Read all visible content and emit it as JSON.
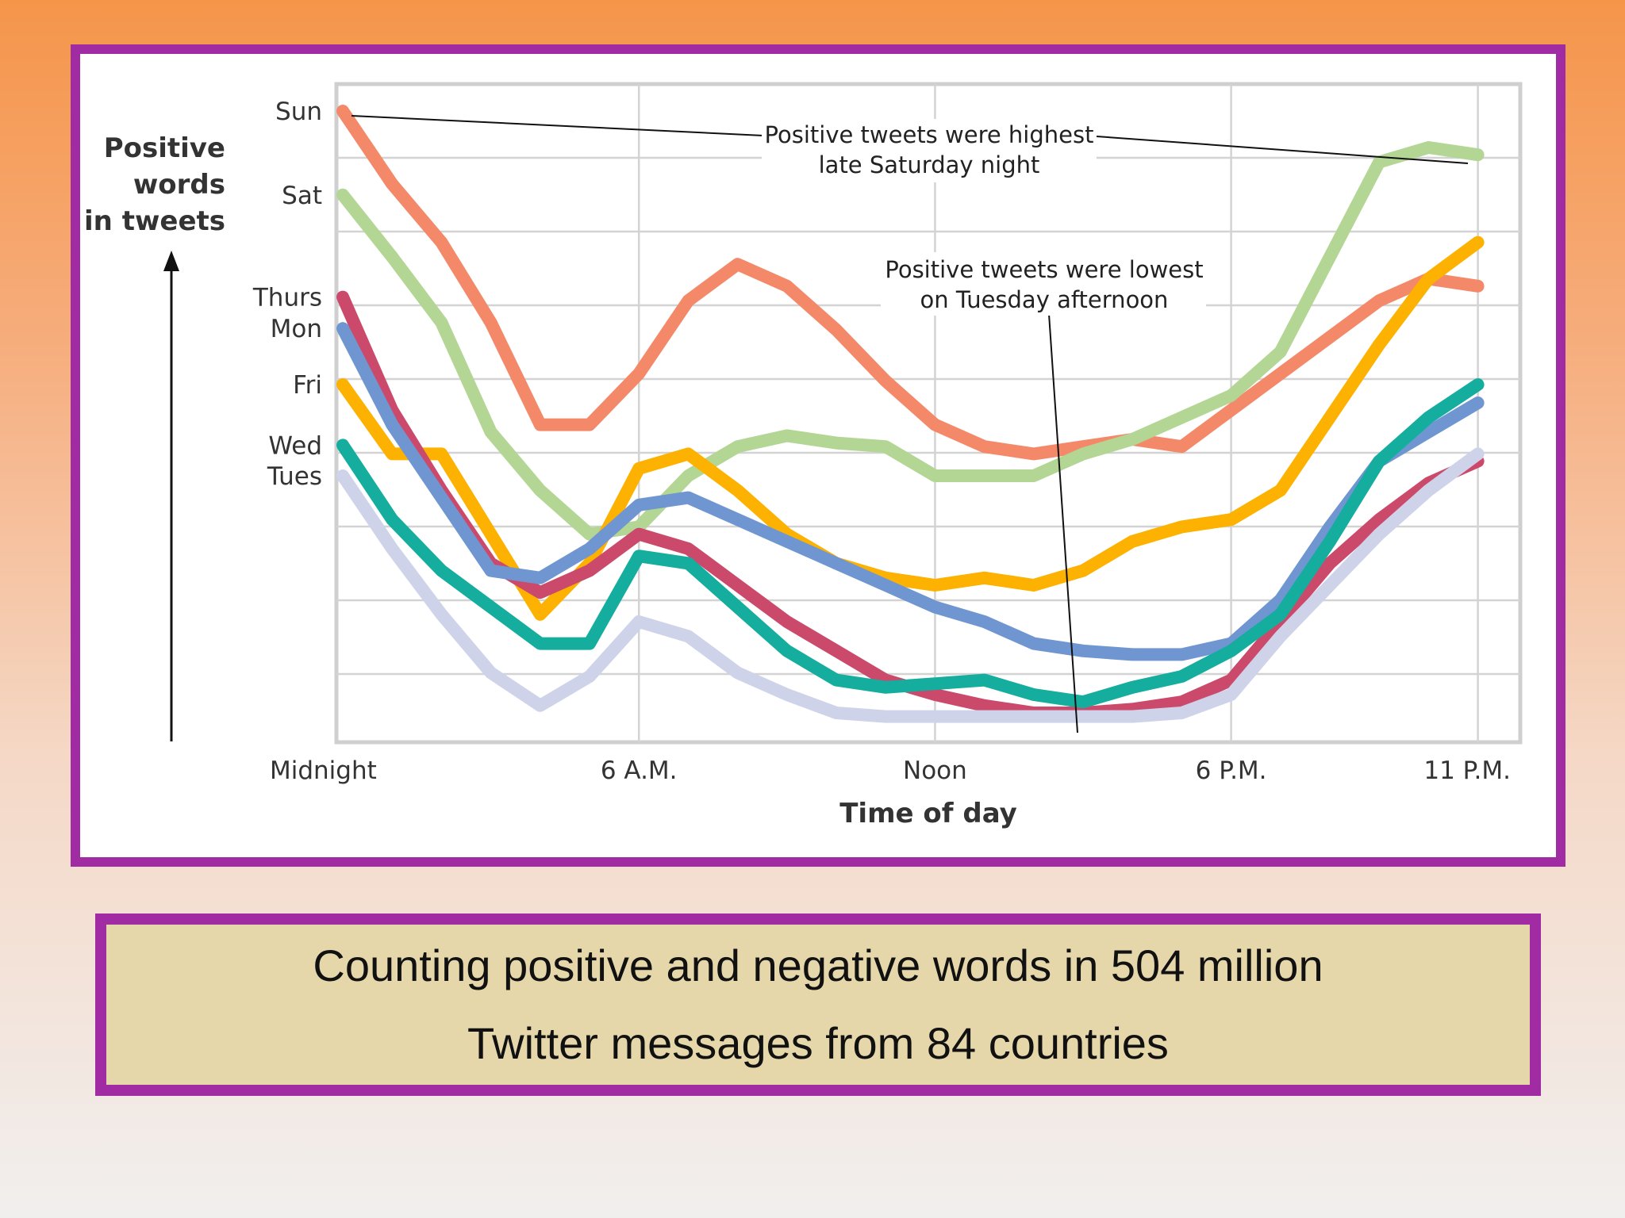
{
  "chart_data": {
    "type": "line",
    "title": "",
    "xlabel": "Time of day",
    "ylabel": "Positive words in tweets",
    "ylabel_lines": [
      "Positive",
      "words",
      "in tweets"
    ],
    "x_ticks": [
      {
        "hour": 0,
        "label": "Midnight"
      },
      {
        "hour": 6,
        "label": "6 A.M."
      },
      {
        "hour": 12,
        "label": "Noon"
      },
      {
        "hour": 18,
        "label": "6 P.M."
      },
      {
        "hour": 23,
        "label": "11 P.M."
      }
    ],
    "x_range": [
      0,
      23
    ],
    "y_range": [
      0,
      9
    ],
    "grid": true,
    "legend": "none",
    "day_labels": [
      {
        "label": "Sun",
        "y": 8.5
      },
      {
        "label": "Sat",
        "y": 7.35
      },
      {
        "label": "Thurs",
        "y": 5.95
      },
      {
        "label": "Mon",
        "y": 5.52
      },
      {
        "label": "Fri",
        "y": 4.75
      },
      {
        "label": "Wed",
        "y": 3.92
      },
      {
        "label": "Tues",
        "y": 3.5
      }
    ],
    "series": [
      {
        "color": "#f4896a",
        "values": [
          [
            0,
            8.5
          ],
          [
            1,
            7.5
          ],
          [
            2,
            6.7
          ],
          [
            3,
            5.6
          ],
          [
            4,
            4.2
          ],
          [
            5,
            4.2
          ],
          [
            6,
            4.9
          ],
          [
            7,
            5.9
          ],
          [
            8,
            6.4
          ],
          [
            9,
            6.1
          ],
          [
            10,
            5.5
          ],
          [
            11,
            4.8
          ],
          [
            12,
            4.2
          ],
          [
            13,
            3.9
          ],
          [
            14,
            3.8
          ],
          [
            15,
            3.9
          ],
          [
            16,
            4.0
          ],
          [
            17,
            3.9
          ],
          [
            18,
            4.4
          ],
          [
            19,
            4.9
          ],
          [
            20,
            5.4
          ],
          [
            21,
            5.9
          ],
          [
            22,
            6.2
          ],
          [
            23,
            6.1
          ]
        ]
      },
      {
        "color": "#b3d694",
        "values": [
          [
            0,
            7.35
          ],
          [
            1,
            6.5
          ],
          [
            2,
            5.6
          ],
          [
            3,
            4.1
          ],
          [
            4,
            3.3
          ],
          [
            5,
            2.7
          ],
          [
            6,
            2.8
          ],
          [
            7,
            3.5
          ],
          [
            8,
            3.9
          ],
          [
            9,
            4.05
          ],
          [
            10,
            3.95
          ],
          [
            11,
            3.9
          ],
          [
            12,
            3.5
          ],
          [
            13,
            3.5
          ],
          [
            14,
            3.5
          ],
          [
            15,
            3.8
          ],
          [
            16,
            4.0
          ],
          [
            17,
            4.3
          ],
          [
            18,
            4.6
          ],
          [
            19,
            5.2
          ],
          [
            20,
            6.5
          ],
          [
            21,
            7.8
          ],
          [
            22,
            8.0
          ],
          [
            23,
            7.9
          ]
        ]
      },
      {
        "color": "#fdb100",
        "values": [
          [
            0,
            4.75
          ],
          [
            1,
            3.8
          ],
          [
            2,
            3.8
          ],
          [
            3,
            2.7
          ],
          [
            4,
            1.6
          ],
          [
            5,
            2.3
          ],
          [
            6,
            3.6
          ],
          [
            7,
            3.8
          ],
          [
            8,
            3.3
          ],
          [
            9,
            2.7
          ],
          [
            10,
            2.3
          ],
          [
            11,
            2.1
          ],
          [
            12,
            2.0
          ],
          [
            13,
            2.1
          ],
          [
            14,
            2.0
          ],
          [
            15,
            2.2
          ],
          [
            16,
            2.6
          ],
          [
            17,
            2.8
          ],
          [
            18,
            2.9
          ],
          [
            19,
            3.3
          ],
          [
            20,
            4.3
          ],
          [
            21,
            5.3
          ],
          [
            22,
            6.2
          ],
          [
            23,
            6.7
          ]
        ]
      },
      {
        "color": "#cb4a6b",
        "values": [
          [
            0,
            5.95
          ],
          [
            1,
            4.4
          ],
          [
            2,
            3.3
          ],
          [
            3,
            2.3
          ],
          [
            4,
            1.9
          ],
          [
            5,
            2.2
          ],
          [
            6,
            2.7
          ],
          [
            7,
            2.5
          ],
          [
            8,
            2.0
          ],
          [
            9,
            1.5
          ],
          [
            10,
            1.1
          ],
          [
            11,
            0.7
          ],
          [
            12,
            0.5
          ],
          [
            13,
            0.35
          ],
          [
            14,
            0.25
          ],
          [
            15,
            0.25
          ],
          [
            16,
            0.3
          ],
          [
            17,
            0.4
          ],
          [
            18,
            0.7
          ],
          [
            19,
            1.5
          ],
          [
            20,
            2.3
          ],
          [
            21,
            2.9
          ],
          [
            22,
            3.4
          ],
          [
            23,
            3.7
          ]
        ]
      },
      {
        "color": "#7096d2",
        "values": [
          [
            0,
            5.52
          ],
          [
            1,
            4.2
          ],
          [
            2,
            3.2
          ],
          [
            3,
            2.2
          ],
          [
            4,
            2.1
          ],
          [
            5,
            2.5
          ],
          [
            6,
            3.1
          ],
          [
            7,
            3.2
          ],
          [
            8,
            2.9
          ],
          [
            9,
            2.6
          ],
          [
            10,
            2.3
          ],
          [
            11,
            2.0
          ],
          [
            12,
            1.7
          ],
          [
            13,
            1.5
          ],
          [
            14,
            1.2
          ],
          [
            15,
            1.1
          ],
          [
            16,
            1.05
          ],
          [
            17,
            1.05
          ],
          [
            18,
            1.2
          ],
          [
            19,
            1.8
          ],
          [
            20,
            2.8
          ],
          [
            21,
            3.7
          ],
          [
            22,
            4.1
          ],
          [
            23,
            4.5
          ]
        ]
      },
      {
        "color": "#14ad9e",
        "values": [
          [
            0,
            3.92
          ],
          [
            1,
            2.9
          ],
          [
            2,
            2.2
          ],
          [
            3,
            1.7
          ],
          [
            4,
            1.2
          ],
          [
            5,
            1.2
          ],
          [
            6,
            2.4
          ],
          [
            7,
            2.3
          ],
          [
            8,
            1.7
          ],
          [
            9,
            1.1
          ],
          [
            10,
            0.7
          ],
          [
            11,
            0.6
          ],
          [
            12,
            0.65
          ],
          [
            13,
            0.7
          ],
          [
            14,
            0.5
          ],
          [
            15,
            0.4
          ],
          [
            16,
            0.6
          ],
          [
            17,
            0.75
          ],
          [
            18,
            1.1
          ],
          [
            19,
            1.6
          ],
          [
            20,
            2.6
          ],
          [
            21,
            3.7
          ],
          [
            22,
            4.3
          ],
          [
            23,
            4.75
          ]
        ]
      },
      {
        "color": "#cfd3ea",
        "values": [
          [
            0,
            3.5
          ],
          [
            1,
            2.5
          ],
          [
            2,
            1.6
          ],
          [
            3,
            0.8
          ],
          [
            4,
            0.35
          ],
          [
            5,
            0.75
          ],
          [
            6,
            1.5
          ],
          [
            7,
            1.3
          ],
          [
            8,
            0.8
          ],
          [
            9,
            0.5
          ],
          [
            10,
            0.25
          ],
          [
            11,
            0.2
          ],
          [
            12,
            0.2
          ],
          [
            13,
            0.2
          ],
          [
            14,
            0.2
          ],
          [
            15,
            0.2
          ],
          [
            16,
            0.2
          ],
          [
            17,
            0.25
          ],
          [
            18,
            0.5
          ],
          [
            19,
            1.3
          ],
          [
            20,
            2.0
          ],
          [
            21,
            2.7
          ],
          [
            22,
            3.3
          ],
          [
            23,
            3.8
          ]
        ]
      }
    ],
    "annotations": [
      {
        "lines": [
          "Positive tweets were highest",
          "late Saturday night"
        ]
      },
      {
        "lines": [
          "Positive tweets were lowest",
          "on Tuesday afternoon"
        ]
      }
    ]
  },
  "caption": {
    "line1": "Counting positive and negative words in 504 million",
    "line2": "Twitter messages from 84 countries"
  }
}
